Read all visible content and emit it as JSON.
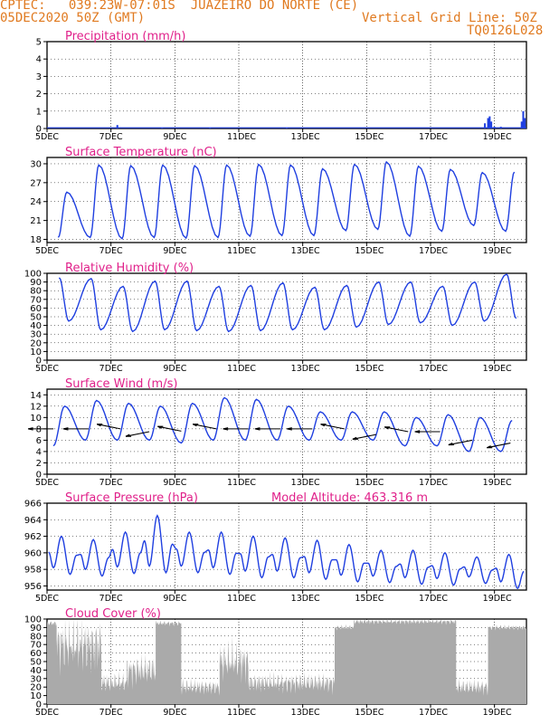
{
  "header": {
    "line1": "CPTEC:   039:23W-07:01S  JUAZEIRO DO NORTE (CE)",
    "line2": "05DEC2020 50Z (GMT)",
    "grid_note": "Vertical Grid Line: 50Z",
    "code": "TQ0126L028"
  },
  "colors": {
    "header": "#e07a20",
    "title": "#e0208a",
    "line": "#1f3fe0",
    "bar": "#aaaaaa",
    "arrow": "#000000"
  },
  "x_ticks": [
    "5DEC",
    "7DEC",
    "9DEC",
    "11DEC",
    "13DEC",
    "15DEC",
    "17DEC",
    "19DEC"
  ],
  "chart_data": [
    {
      "type": "bar",
      "title": "Precipitation (mm/h)",
      "ylim": [
        0,
        5
      ],
      "yticks": [
        0,
        1,
        2,
        3,
        4,
        5
      ],
      "x_start_day": 5,
      "x_end_day": 20,
      "events": [
        {
          "x": 7.2,
          "v": 0.2
        },
        {
          "x": 8.6,
          "v": 0.05
        },
        {
          "x": 10.1,
          "v": 0.05
        },
        {
          "x": 12.5,
          "v": 0.05
        },
        {
          "x": 18.7,
          "v": 0.3
        },
        {
          "x": 18.8,
          "v": 0.6
        },
        {
          "x": 18.85,
          "v": 0.7
        },
        {
          "x": 18.9,
          "v": 0.4
        },
        {
          "x": 19.0,
          "v": 0.1
        },
        {
          "x": 19.2,
          "v": 0.1
        },
        {
          "x": 19.85,
          "v": 0.4
        },
        {
          "x": 19.9,
          "v": 1.0
        },
        {
          "x": 19.95,
          "v": 0.6
        }
      ]
    },
    {
      "type": "line",
      "title": "Surface Temperature (nC)",
      "ylim": [
        17.5,
        31
      ],
      "yticks": [
        18,
        21,
        24,
        27,
        30
      ],
      "x_start_day": 5,
      "x_end_day": 20,
      "daily_max": [
        25.5,
        29.8,
        29.7,
        29.8,
        29.7,
        29.8,
        29.9,
        29.8,
        29.2,
        29.9,
        30.3,
        29.6,
        29.1,
        28.6,
        28.7,
        28.0
      ],
      "daily_min": [
        18.3,
        18.3,
        18.1,
        18.3,
        18.2,
        18.3,
        18.5,
        18.6,
        18.6,
        19.4,
        19.6,
        18.5,
        19.3,
        20.2,
        19.3,
        22.0
      ]
    },
    {
      "type": "line",
      "title": "Relative Humidity (%)",
      "ylim": [
        0,
        100
      ],
      "yticks": [
        0,
        10,
        20,
        30,
        40,
        50,
        60,
        70,
        80,
        90,
        100
      ],
      "x_start_day": 5,
      "x_end_day": 20,
      "daily_max": [
        95,
        94,
        85,
        91,
        91,
        85,
        86,
        89,
        84,
        86,
        90,
        90,
        85,
        90,
        99,
        95
      ],
      "daily_min": [
        45,
        35,
        33,
        35,
        34,
        33,
        34,
        35,
        35,
        38,
        41,
        43,
        40,
        45,
        48,
        40
      ]
    },
    {
      "type": "line",
      "title": "Surface Wind (m/s)",
      "ylim": [
        0,
        15
      ],
      "yticks": [
        0,
        2,
        4,
        6,
        8,
        10,
        12,
        14
      ],
      "x_start_day": 5,
      "x_end_day": 20,
      "daily_max": [
        12,
        13,
        12.5,
        12,
        12.5,
        13.5,
        13.2,
        12,
        11,
        11,
        11,
        10,
        10.5,
        10,
        9.5
      ],
      "daily_min": [
        5,
        6,
        6,
        6,
        5.5,
        6,
        6,
        6,
        6,
        6,
        6,
        5,
        5,
        4,
        4
      ],
      "arrows": [
        {
          "x": 5.2,
          "y": 8,
          "dir": "W"
        },
        {
          "x": 6.3,
          "y": 8,
          "dir": "W"
        },
        {
          "x": 7.3,
          "y": 8,
          "dir": "NW"
        },
        {
          "x": 8.2,
          "y": 7.5,
          "dir": "SW"
        },
        {
          "x": 9.2,
          "y": 7.6,
          "dir": "NW"
        },
        {
          "x": 10.3,
          "y": 8,
          "dir": "NW"
        },
        {
          "x": 11.3,
          "y": 8,
          "dir": "W"
        },
        {
          "x": 12.3,
          "y": 8,
          "dir": "W"
        },
        {
          "x": 13.3,
          "y": 8,
          "dir": "W"
        },
        {
          "x": 14.3,
          "y": 8,
          "dir": "NW"
        },
        {
          "x": 15.3,
          "y": 7,
          "dir": "SW"
        },
        {
          "x": 16.3,
          "y": 7.5,
          "dir": "NW"
        },
        {
          "x": 17.3,
          "y": 7.5,
          "dir": "W"
        },
        {
          "x": 18.3,
          "y": 6,
          "dir": "SW"
        },
        {
          "x": 19.5,
          "y": 5.5,
          "dir": "SW"
        }
      ]
    },
    {
      "type": "line",
      "title": "Surface Pressure (hPa)",
      "subtitle": "Model Altitude: 463.316 m",
      "ylim": [
        955.5,
        966
      ],
      "yticks": [
        956,
        958,
        960,
        962,
        964,
        966
      ],
      "x_start_day": 5,
      "x_end_day": 20,
      "daily_max": [
        962.0,
        961.6,
        962.5,
        964.5,
        962.5,
        962.5,
        962.0,
        961.8,
        961.5,
        961.0,
        960.3,
        960.3,
        960.0,
        959.5,
        959.8
      ],
      "daily_min": [
        957.4,
        957.2,
        957.5,
        957.6,
        957.6,
        957.4,
        957.0,
        957.0,
        956.8,
        956.5,
        956.4,
        956.2,
        956.1,
        956.3,
        955.7
      ]
    },
    {
      "type": "area",
      "title": "Cloud Cover (%)",
      "ylim": [
        0,
        100
      ],
      "yticks": [
        0,
        10,
        20,
        30,
        40,
        50,
        60,
        70,
        80,
        90,
        100
      ],
      "x_start_day": 5,
      "x_end_day": 20,
      "segments": [
        {
          "from": 5.0,
          "to": 5.3,
          "level": 95
        },
        {
          "from": 5.3,
          "to": 6.7,
          "level": 70
        },
        {
          "from": 6.7,
          "to": 7.5,
          "level": 25
        },
        {
          "from": 7.5,
          "to": 8.4,
          "level": 40
        },
        {
          "from": 8.4,
          "to": 9.2,
          "level": 95
        },
        {
          "from": 9.2,
          "to": 10.4,
          "level": 20
        },
        {
          "from": 10.4,
          "to": 11.3,
          "level": 50
        },
        {
          "from": 11.3,
          "to": 14.0,
          "level": 25
        },
        {
          "from": 14.0,
          "to": 14.6,
          "level": 90
        },
        {
          "from": 14.6,
          "to": 17.8,
          "level": 97
        },
        {
          "from": 17.8,
          "to": 18.8,
          "level": 20
        },
        {
          "from": 18.8,
          "to": 20.0,
          "level": 90
        }
      ]
    }
  ]
}
